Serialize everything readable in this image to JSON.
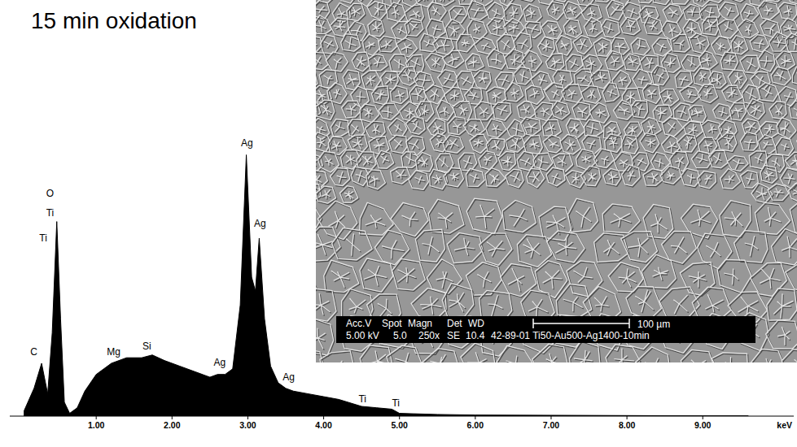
{
  "chart_data": {
    "type": "area",
    "title": "15 min oxidation",
    "xlabel": "keV",
    "color": "#000000",
    "x": [
      0.05,
      0.18,
      0.28,
      0.36,
      0.42,
      0.48,
      0.53,
      0.58,
      0.65,
      0.75,
      0.85,
      1.0,
      1.2,
      1.4,
      1.6,
      1.74,
      1.9,
      2.1,
      2.3,
      2.5,
      2.6,
      2.7,
      2.8,
      2.9,
      2.98,
      3.05,
      3.1,
      3.15,
      3.22,
      3.3,
      3.4,
      3.5,
      3.6,
      3.8,
      4.0,
      4.2,
      4.5,
      4.7,
      4.9,
      5.0,
      5.5,
      6.0,
      7.0,
      8.0,
      9.0,
      9.6
    ],
    "values": [
      2,
      10,
      19,
      8,
      30,
      70,
      35,
      5,
      1,
      3,
      9,
      15,
      19,
      21,
      21,
      22,
      20,
      18,
      16,
      14,
      15,
      15,
      17,
      40,
      94,
      50,
      45,
      64,
      35,
      18,
      12,
      10,
      9,
      8,
      7,
      6,
      3.5,
      3,
      2.5,
      1,
      0.6,
      0.4,
      0.3,
      0.2,
      0.1,
      0.1
    ],
    "xlim": [
      -0.14,
      10.2
    ],
    "ylim": [
      0,
      100
    ],
    "xticks": [
      {
        "value": 1,
        "label": "1.00"
      },
      {
        "value": 2,
        "label": "2.00"
      },
      {
        "value": 3,
        "label": "3.00"
      },
      {
        "value": 4,
        "label": "4.00"
      },
      {
        "value": 5,
        "label": "5.00"
      },
      {
        "value": 6,
        "label": "6.00"
      },
      {
        "value": 7,
        "label": "7.00"
      },
      {
        "value": 8,
        "label": "8.00"
      },
      {
        "value": 9,
        "label": "9.00"
      }
    ],
    "tick_labels": "x",
    "annotations": [
      {
        "text": "C",
        "x": 0.13,
        "y": 22
      },
      {
        "text": "O",
        "x": 0.34,
        "y": 79
      },
      {
        "text": "Ti",
        "x": 0.34,
        "y": 72
      },
      {
        "text": "Ti",
        "x": 0.25,
        "y": 63
      },
      {
        "text": "Mg",
        "x": 1.14,
        "y": 22
      },
      {
        "text": "Si",
        "x": 1.61,
        "y": 24
      },
      {
        "text": "Ag",
        "x": 2.91,
        "y": 97
      },
      {
        "text": "Ag",
        "x": 3.08,
        "y": 68
      },
      {
        "text": "Ag",
        "x": 2.55,
        "y": 18
      },
      {
        "text": "Ag",
        "x": 3.46,
        "y": 13
      },
      {
        "text": "Ti",
        "x": 4.46,
        "y": 5
      },
      {
        "text": "Ti",
        "x": 4.9,
        "y": 3.5
      }
    ]
  },
  "inset": {
    "header": [
      "Acc.V",
      "Spot",
      "Magn",
      "Det",
      "WD"
    ],
    "values": [
      "5.00 kV",
      "5.0",
      "250x",
      "SE",
      "10.4"
    ],
    "sample": "42-89-01 Ti50-Au500-Ag1400-10min",
    "scale_bar": "100 µm"
  }
}
